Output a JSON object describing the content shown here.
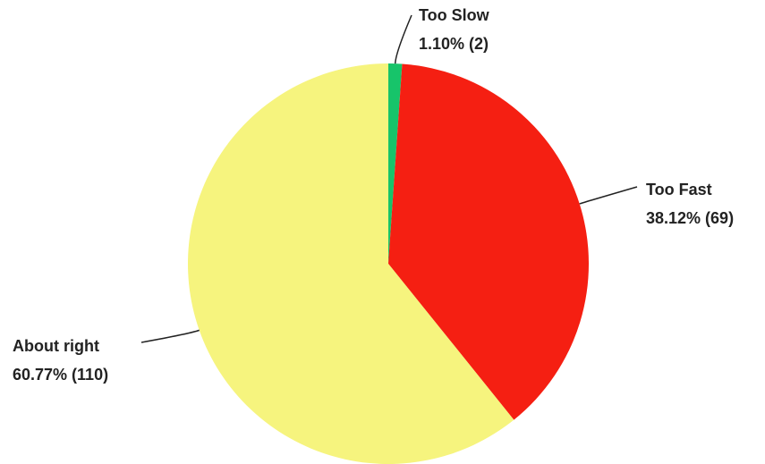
{
  "chart_data": {
    "type": "pie",
    "categories": [
      "Too Slow",
      "Too Fast",
      "About right"
    ],
    "values": [
      1.1,
      38.12,
      60.77
    ],
    "value_labels": [
      "1.10% (2)",
      "38.12% (69)",
      "60.77% (110)"
    ],
    "colors": [
      "#17c46a",
      "#f51f12",
      "#f6f47e"
    ]
  }
}
